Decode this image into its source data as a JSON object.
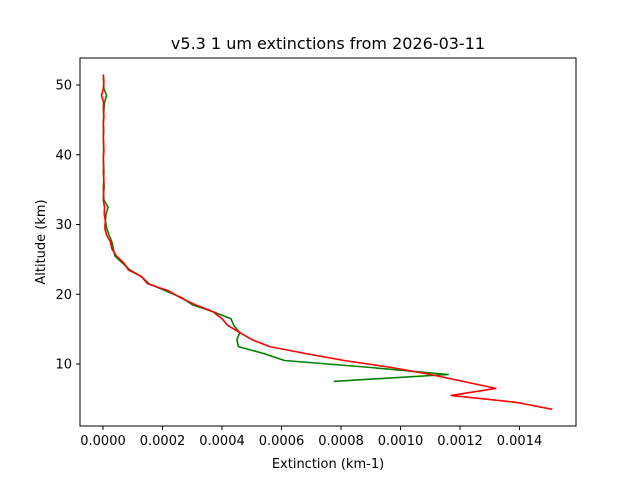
{
  "chart_data": {
    "type": "line",
    "title": "v5.3 1 um extinctions from 2026-03-11",
    "xlabel": "Extinction (km-1)",
    "ylabel": "Altitude (km)",
    "xlim": [
      -8e-05,
      0.00159
    ],
    "ylim": [
      1.1,
      53.9
    ],
    "xticks": [
      0.0,
      0.0002,
      0.0004,
      0.0006,
      0.0008,
      0.001,
      0.0012,
      0.0014
    ],
    "xtick_labels": [
      "0.0000",
      "0.0002",
      "0.0004",
      "0.0006",
      "0.0008",
      "0.0010",
      "0.0012",
      "0.0014"
    ],
    "yticks": [
      10,
      20,
      30,
      40,
      50
    ],
    "ytick_labels": [
      "10",
      "20",
      "30",
      "40",
      "50"
    ],
    "grid": false,
    "legend": null,
    "series": [
      {
        "name": "green",
        "color": "#008000",
        "altitude": [
          51.5,
          50.5,
          49.5,
          48.5,
          47.5,
          46.5,
          45.5,
          44.5,
          43.5,
          42.5,
          41.5,
          40.5,
          39.5,
          38.5,
          37.5,
          36.5,
          35.5,
          34.5,
          33.5,
          32.5,
          31.5,
          30.5,
          29.5,
          28.5,
          27.5,
          26.5,
          25.5,
          24.5,
          23.5,
          22.5,
          21.5,
          20.5,
          19.5,
          18.5,
          17.5,
          16.5,
          15.5,
          14.5,
          13.5,
          12.5,
          11.5,
          10.5,
          9.5,
          8.5,
          7.5
        ],
        "extinction": [
          1e-06,
          2e-06,
          3e-06,
          1.2e-05,
          5e-06,
          3e-06,
          2e-06,
          1e-06,
          2e-06,
          1e-06,
          2e-06,
          2e-06,
          1e-06,
          2e-06,
          3e-06,
          2e-06,
          4e-06,
          2e-06,
          3e-06,
          1.7e-05,
          1e-05,
          8e-06,
          1.2e-05,
          2e-05,
          3e-05,
          3.5e-05,
          4e-05,
          6.5e-05,
          9e-05,
          0.00013,
          0.000155,
          0.00021,
          0.000265,
          0.0003,
          0.00037,
          0.00043,
          0.00044,
          0.00046,
          0.00045,
          0.000455,
          0.00054,
          0.00061,
          0.0009,
          0.00116,
          0.000775
        ]
      },
      {
        "name": "red",
        "color": "#ff0000",
        "altitude": [
          51.5,
          50.5,
          49.5,
          48.5,
          47.5,
          46.5,
          45.5,
          44.5,
          43.5,
          42.5,
          41.5,
          40.5,
          39.5,
          38.5,
          37.5,
          36.5,
          35.5,
          34.5,
          33.5,
          32.5,
          31.5,
          30.5,
          29.5,
          28.5,
          27.5,
          26.5,
          25.5,
          24.5,
          23.5,
          22.5,
          21.5,
          20.5,
          19.5,
          18.5,
          17.5,
          16.5,
          15.5,
          14.5,
          13.5,
          12.5,
          11.5,
          10.5,
          9.5,
          8.5,
          7.5,
          6.5,
          5.5,
          4.5,
          3.5
        ],
        "extinction": [
          1e-06,
          3e-06,
          1e-06,
          -5e-06,
          2e-06,
          1e-06,
          3e-06,
          1e-06,
          2e-06,
          1e-06,
          2e-06,
          3e-06,
          1e-06,
          2e-06,
          1e-06,
          3e-06,
          1e-06,
          2e-06,
          1e-06,
          5e-06,
          4e-06,
          8e-06,
          6e-06,
          1.2e-05,
          2.5e-05,
          3e-05,
          4.5e-05,
          7e-05,
          8.5e-05,
          0.00013,
          0.00015,
          0.00022,
          0.00026,
          0.00031,
          0.00037,
          0.0004,
          0.00042,
          0.00046,
          0.0005,
          0.00056,
          0.00068,
          0.00081,
          0.00097,
          0.0011,
          0.00121,
          0.00132,
          0.00117,
          0.00139,
          0.00151
        ]
      }
    ]
  }
}
